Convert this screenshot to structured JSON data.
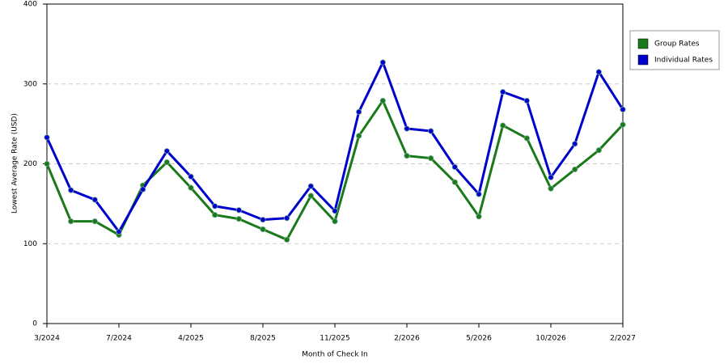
{
  "chart_data": {
    "type": "line",
    "x_label": "Month of Check In",
    "y_label": "Lowest Average Rate (USD)",
    "categories": [
      "3/2024",
      null,
      null,
      "7/2024",
      null,
      null,
      "4/2025",
      null,
      null,
      "8/2025",
      null,
      null,
      "11/2025",
      null,
      null,
      "2/2026",
      null,
      null,
      "5/2026",
      null,
      null,
      "10/2026",
      null,
      null,
      "2/2027"
    ],
    "series": [
      {
        "name": "Group Rates",
        "color": "#1a7a1a",
        "values": [
          200,
          128,
          128,
          111,
          173,
          202,
          170,
          136,
          131,
          118,
          105,
          160,
          128,
          235,
          279,
          210,
          207,
          177,
          134,
          248,
          232,
          169,
          193,
          217,
          249
        ]
      },
      {
        "name": "Individual Rates",
        "color": "#0000cc",
        "values": [
          233,
          167,
          155,
          115,
          168,
          216,
          184,
          147,
          142,
          130,
          132,
          172,
          141,
          265,
          327,
          244,
          241,
          196,
          162,
          290,
          279,
          183,
          225,
          315,
          268
        ]
      }
    ],
    "ylim": [
      0,
      400
    ],
    "yticks": [
      0,
      100,
      200,
      300,
      400
    ],
    "grid": true,
    "legend": "top-right"
  }
}
